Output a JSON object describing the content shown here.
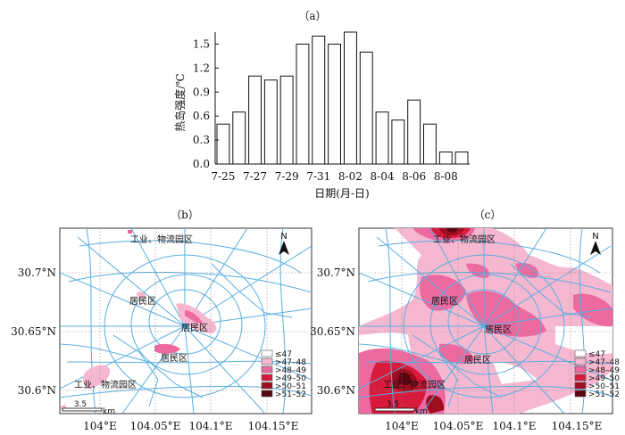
{
  "chart_data": [
    {
      "type": "bar",
      "panel_label": "（a）",
      "xlabel": "日期(月-日)",
      "ylabel": "热岛强度/℃",
      "ylim": [
        0,
        1.65
      ],
      "yticks": [
        "0.0",
        "0.3",
        "0.6",
        "0.9",
        "1.2",
        "1.5"
      ],
      "ytick_values": [
        0,
        0.3,
        0.6,
        0.9,
        1.2,
        1.5
      ],
      "xtick_labels": [
        "7-25",
        "7-27",
        "7-29",
        "7-31",
        "8-02",
        "8-04",
        "8-06",
        "8-08"
      ],
      "categories": [
        "7-25",
        "7-26",
        "7-27",
        "7-28",
        "7-29",
        "7-30",
        "7-31",
        "8-01",
        "8-02",
        "8-03",
        "8-04",
        "8-05",
        "8-06",
        "8-07",
        "8-08",
        "8-09"
      ],
      "values": [
        0.5,
        0.65,
        1.1,
        1.05,
        1.1,
        1.5,
        1.6,
        1.5,
        1.65,
        1.4,
        0.65,
        0.55,
        0.8,
        0.5,
        0.15,
        0.15
      ]
    },
    {
      "type": "heatmap",
      "panel_label": "（b）",
      "area_labels": [
        "工业、物流园区",
        "居民区",
        "居民区",
        "居民区",
        "工业、物流园区"
      ],
      "x_ticks": [
        "104°E",
        "104.05°E",
        "104.1°E",
        "104.15°E"
      ],
      "y_ticks": [
        "30.7°N",
        "30.65°N",
        "30.6°N"
      ],
      "north": "N",
      "scale_value": "3.5",
      "scale_unit": "km"
    },
    {
      "type": "heatmap",
      "panel_label": "（c）",
      "area_labels": [
        "工业、物流园区",
        "居民区",
        "居民区",
        "居民区",
        "工业、物流园区"
      ],
      "x_ticks": [
        "104°E",
        "104.05°E",
        "104.1°E",
        "104.15°E"
      ],
      "north": "N",
      "scale_value": "3.5",
      "scale_unit": "km"
    }
  ],
  "legend": {
    "items": [
      {
        "label": "≤47",
        "color": "#ffffff"
      },
      {
        "label": ">47–48",
        "color": "#f5b8d0"
      },
      {
        "label": ">48–49",
        "color": "#ec6aa0"
      },
      {
        "label": ">49–50",
        "color": "#d81b3c"
      },
      {
        "label": ">50–51",
        "color": "#9e0e1e"
      },
      {
        "label": ">51–52",
        "color": "#5a0610"
      }
    ]
  },
  "colors": {
    "roads": "#5aaee0",
    "bar_fill": "#ffffff",
    "bar_stroke": "#111111"
  }
}
